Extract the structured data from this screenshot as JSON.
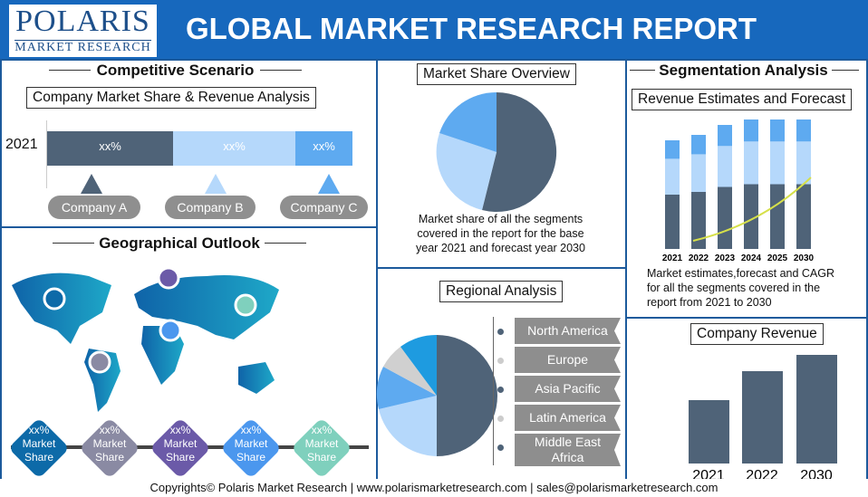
{
  "header": {
    "logo_main": "POLARIS",
    "logo_sub": "MARKET RESEARCH",
    "title": "GLOBAL MARKET RESEARCH REPORT"
  },
  "competitive": {
    "title": "Competitive Scenario",
    "subtitle": "Company Market Share & Revenue Analysis",
    "year": "2021",
    "segments": [
      {
        "label": "xx%",
        "color": "#4f6378"
      },
      {
        "label": "xx%",
        "color": "#b5d8fb"
      },
      {
        "label": "xx%",
        "color": "#5eaaf0"
      }
    ],
    "companies": [
      "Company A",
      "Company B",
      "Company C"
    ]
  },
  "geo": {
    "title": "Geographical Outlook",
    "diamonds": [
      {
        "value": "xx%",
        "label1": "Market",
        "label2": "Share",
        "color": "#0d6aa8"
      },
      {
        "value": "xx%",
        "label1": "Market",
        "label2": "Share",
        "color": "#8a8aa3"
      },
      {
        "value": "xx%",
        "label1": "Market",
        "label2": "Share",
        "color": "#6b5aa8"
      },
      {
        "value": "xx%",
        "label1": "Market",
        "label2": "Share",
        "color": "#4b97ee"
      },
      {
        "value": "xx%",
        "label1": "Market",
        "label2": "Share",
        "color": "#7fd0bd"
      }
    ]
  },
  "market_share": {
    "title": "Market Share Overview",
    "caption": [
      "Market share of all the segments",
      "covered in the report for the base",
      "year 2021 and forecast year 2030"
    ]
  },
  "regional": {
    "title": "Regional Analysis",
    "regions": [
      "North America",
      "Europe",
      "Asia Pacific",
      "Latin America",
      "Middle East"
    ],
    "region_last_line2": "Africa"
  },
  "segmentation": {
    "title": "Segmentation Analysis",
    "subtitle": "Revenue Estimates and Forecast",
    "years": [
      "2021",
      "2022",
      "2023",
      "2024",
      "2025",
      "2030"
    ],
    "caption": [
      "Market estimates,forecast and CAGR",
      "for all the segments covered in the",
      "report from 2021 to 2030"
    ]
  },
  "company_revenue": {
    "title": "Company Revenue",
    "years": [
      "2021",
      "2022",
      "2030"
    ]
  },
  "footer": "Copyrights© Polaris Market Research | www.polarismarketresearch.com | sales@polarismarketresearch.com",
  "colors": {
    "header": "#1768bd",
    "dark": "#4f6378",
    "light": "#b5d8fb",
    "mid": "#5eaaf0"
  }
}
